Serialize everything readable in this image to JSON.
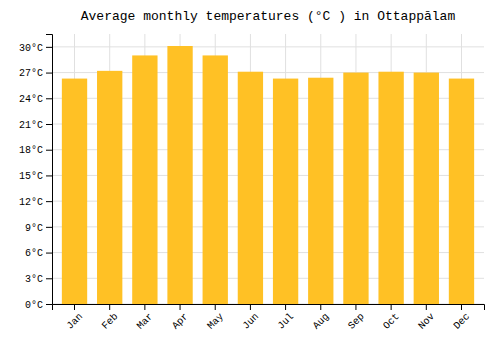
{
  "chart_data": {
    "type": "bar",
    "title": "Average monthly temperatures (°C ) in Ottappālam",
    "categories": [
      "Jan",
      "Feb",
      "Mar",
      "Apr",
      "May",
      "Jun",
      "Jul",
      "Aug",
      "Sep",
      "Oct",
      "Nov",
      "Dec"
    ],
    "values": [
      26.3,
      27.2,
      29.0,
      30.1,
      29.0,
      27.1,
      26.3,
      26.4,
      27.0,
      27.1,
      27.0,
      26.3
    ],
    "color": "#FFC125",
    "ylim": [
      0,
      31.5
    ],
    "yticks": [
      {
        "value": 0,
        "label": "0°C"
      },
      {
        "value": 3,
        "label": "3°C"
      },
      {
        "value": 6,
        "label": "6°C"
      },
      {
        "value": 9,
        "label": "9°C"
      },
      {
        "value": 12,
        "label": "12°C"
      },
      {
        "value": 15,
        "label": "15°C"
      },
      {
        "value": 18,
        "label": "18°C"
      },
      {
        "value": 21,
        "label": "21°C"
      },
      {
        "value": 24,
        "label": "24°C"
      },
      {
        "value": 27,
        "label": "27°C"
      },
      {
        "value": 30,
        "label": "30°C"
      }
    ],
    "grid": true
  }
}
